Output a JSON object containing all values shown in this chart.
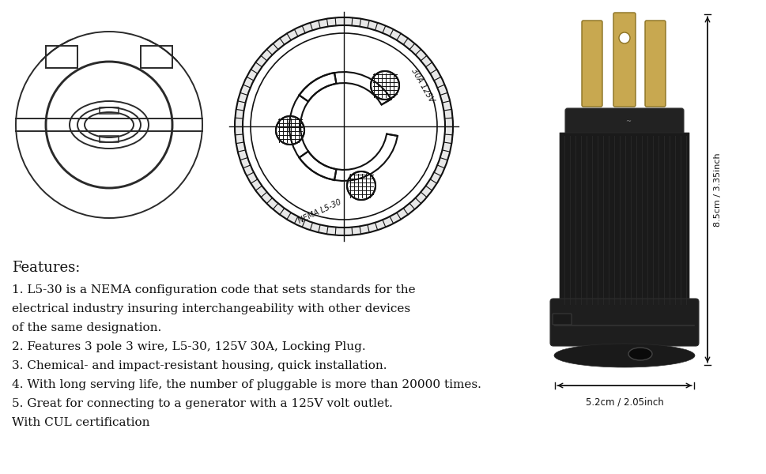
{
  "bg_color": "#ffffff",
  "features_header": "Features:",
  "feature_lines": [
    "1. L5-30 is a NEMA configuration code that sets standards for the",
    "electrical industry insuring interchangeability with other devices",
    "of the same designation.",
    "2. Features 3 pole 3 wire, L5-30, 125V 30A, Locking Plug.",
    "3. Chemical- and impact-resistant housing, quick installation.",
    "4. With long serving life, the number of pluggable is more than 20000 times.",
    "5. Great for connecting to a generator with a 125V volt outlet.",
    "With CUL certification"
  ],
  "dim_height": "8.5cm / 3.35inch",
  "dim_width": "5.2cm / 2.05inch",
  "color_line": "#2a2a2a",
  "color_dark": "#111111",
  "prong_color": "#c8a850",
  "prong_edge": "#8a7020",
  "body_color": "#1a1a1a",
  "body_mid": "#252525"
}
